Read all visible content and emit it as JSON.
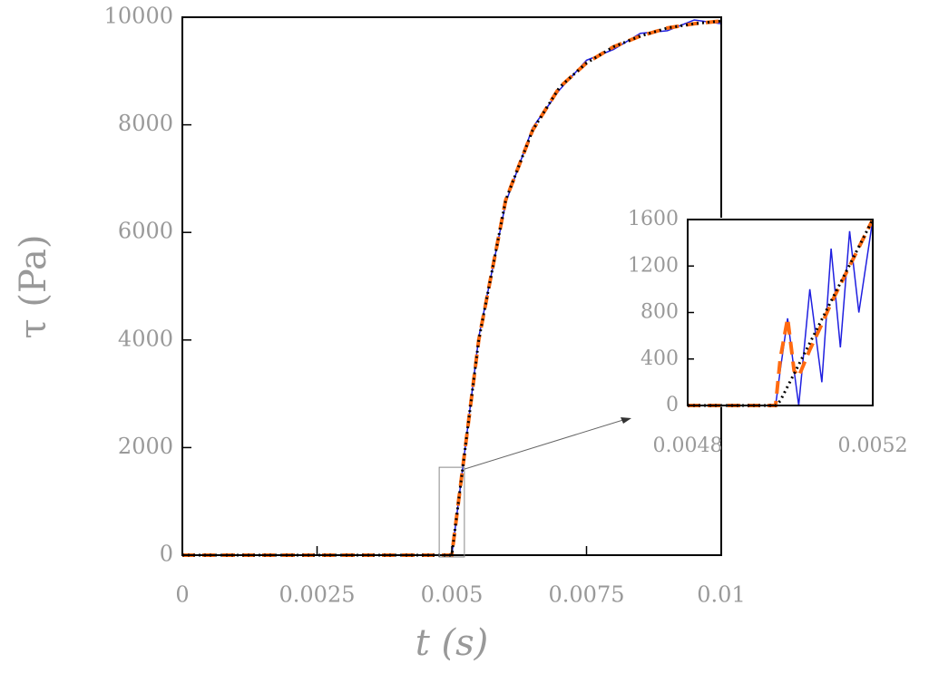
{
  "chart_data": [
    {
      "type": "line",
      "xlabel": "t  (s)",
      "ylabel": "τ  (Pa)",
      "x": [
        0,
        0.001,
        0.002,
        0.003,
        0.004,
        0.0049,
        0.005,
        0.0052,
        0.0055,
        0.006,
        0.0065,
        0.007,
        0.0075,
        0.008,
        0.0085,
        0.009,
        0.0095,
        0.01
      ],
      "series": [
        {
          "color": "#1f1fe0",
          "linestyle": "solid",
          "values": [
            0,
            0,
            0,
            0,
            0,
            0,
            0,
            1600,
            4050,
            6550,
            7950,
            8650,
            9200,
            9400,
            9700,
            9750,
            9950,
            9880
          ]
        },
        {
          "color": "#ff6a10",
          "linestyle": "dashed",
          "values": [
            0,
            0,
            0,
            0,
            0,
            0,
            0,
            1600,
            4000,
            6600,
            7900,
            8700,
            9150,
            9450,
            9650,
            9800,
            9880,
            9930
          ]
        },
        {
          "color": "#000000",
          "linestyle": "dotted",
          "values": [
            0,
            0,
            0,
            0,
            0,
            0,
            0,
            1600,
            4000,
            6600,
            7900,
            8700,
            9150,
            9450,
            9650,
            9800,
            9880,
            9930
          ]
        }
      ],
      "xlim": [
        0,
        0.01
      ],
      "xticks": [
        0,
        0.0025,
        0.005,
        0.0075,
        0.01
      ],
      "ylim": [
        0,
        10000
      ],
      "yticks": [
        0,
        2000,
        4000,
        6000,
        8000,
        10000
      ]
    },
    {
      "type": "line",
      "x": [
        0.0048,
        0.0049,
        0.00499,
        0.005,
        0.005016,
        0.00503,
        0.00504,
        0.005064,
        0.00509,
        0.00511,
        0.00513,
        0.00515,
        0.00517,
        0.0052
      ],
      "series": [
        {
          "color": "#1f1fe0",
          "linestyle": "solid",
          "values": [
            0,
            0,
            0,
            300,
            750,
            300,
            0,
            1000,
            200,
            1350,
            500,
            1500,
            800,
            1600
          ]
        },
        {
          "color": "#ff6a10",
          "linestyle": "dashed",
          "values": [
            0,
            0,
            0,
            400,
            750,
            300,
            250,
            480,
            700,
            880,
            1040,
            1200,
            1360,
            1600
          ]
        },
        {
          "color": "#000000",
          "linestyle": "dotted",
          "values": [
            0,
            0,
            0,
            39,
            164,
            273,
            351,
            538,
            741,
            898,
            1054,
            1210,
            1366,
            1600
          ]
        }
      ],
      "xlim": [
        0.0048,
        0.0052
      ],
      "xticks": [
        0.0048,
        0.0052
      ],
      "ylim": [
        0,
        1600
      ],
      "yticks": [
        0,
        400,
        800,
        1200,
        1600
      ]
    }
  ]
}
